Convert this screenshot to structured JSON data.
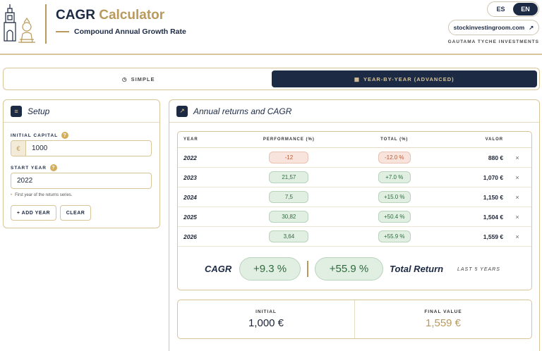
{
  "header": {
    "title_main": "CAGR",
    "title_accent": "Calculator",
    "subtitle": "Compound Annual Growth Rate",
    "lang_es": "ES",
    "lang_en": "EN",
    "site_link": "stockinvestingroom.com",
    "brand": "GAUTAMA TYCHE INVESTMENTS",
    "colors": {
      "navy": "#1d2a44",
      "gold": "#b99a5c"
    }
  },
  "modes": {
    "simple": "SIMPLE",
    "advanced": "YEAR-BY-YEAR (ADVANCED)",
    "selected": "advanced"
  },
  "setup": {
    "title": "Setup",
    "initial_capital_label": "INITIAL CAPITAL",
    "currency_symbol": "€",
    "initial_capital_value": "1000",
    "start_year_label": "START YEAR",
    "start_year_value": "2022",
    "hint": "First year of the returns series.",
    "add_year": "+ ADD YEAR",
    "clear": "CLEAR"
  },
  "returns": {
    "title": "Annual returns and CAGR",
    "columns": {
      "year": "YEAR",
      "performance": "PERFORMANCE (%)",
      "total": "TOTAL (%)",
      "valor": "VALOR"
    },
    "rows": [
      {
        "year": "2022",
        "performance": "-12",
        "total": "-12.0 %",
        "value": "880 €",
        "sign": "neg"
      },
      {
        "year": "2023",
        "performance": "21,57",
        "total": "+7.0 %",
        "value": "1,070 €",
        "sign": "pos"
      },
      {
        "year": "2024",
        "performance": "7,5",
        "total": "+15.0 %",
        "value": "1,150 €",
        "sign": "pos"
      },
      {
        "year": "2025",
        "performance": "30,82",
        "total": "+50.4 %",
        "value": "1,504 €",
        "sign": "pos"
      },
      {
        "year": "2026",
        "performance": "3,64",
        "total": "+55.9 %",
        "value": "1,559 €",
        "sign": "pos"
      }
    ],
    "remove_symbol": "×",
    "cagr_label": "CAGR",
    "cagr_value": "+9.3 %",
    "total_return_value": "+55.9 %",
    "total_return_label": "Total Return",
    "years_label": "LAST 5 YEARS",
    "initial_label": "INITIAL",
    "initial_value": "1,000 €",
    "final_label": "FINAL VALUE",
    "final_value": "1,559 €"
  }
}
